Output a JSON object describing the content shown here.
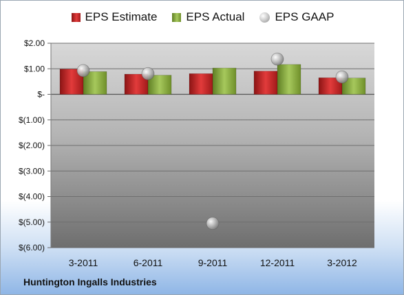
{
  "company_name": "Huntington Ingalls Industries",
  "chart_data": {
    "type": "bar",
    "categories": [
      "3-2011",
      "6-2011",
      "9-2011",
      "12-2011",
      "3-2012"
    ],
    "series": [
      {
        "name": "EPS Estimate",
        "kind": "bar",
        "color": "#d42a2a",
        "values": [
          0.99,
          0.79,
          0.81,
          0.91,
          0.65
        ]
      },
      {
        "name": "EPS Actual",
        "kind": "bar",
        "color": "#8db044",
        "values": [
          0.89,
          0.75,
          1.03,
          1.17,
          0.64
        ]
      },
      {
        "name": "EPS GAAP",
        "kind": "scatter",
        "color": "#b8b8b8",
        "values": [
          0.93,
          0.81,
          -5.05,
          1.38,
          0.68
        ]
      }
    ],
    "y_ticks": [
      2,
      1,
      0,
      -1,
      -2,
      -3,
      -4,
      -5,
      -6
    ],
    "y_tick_labels": [
      "$2.00",
      "$1.00",
      "$-",
      "$(1.00)",
      "$(2.00)",
      "$(3.00)",
      "$(4.00)",
      "$(5.00)",
      "$(6.00)"
    ],
    "ylim": [
      -6,
      2
    ],
    "grid": true,
    "legend_position": "top"
  }
}
